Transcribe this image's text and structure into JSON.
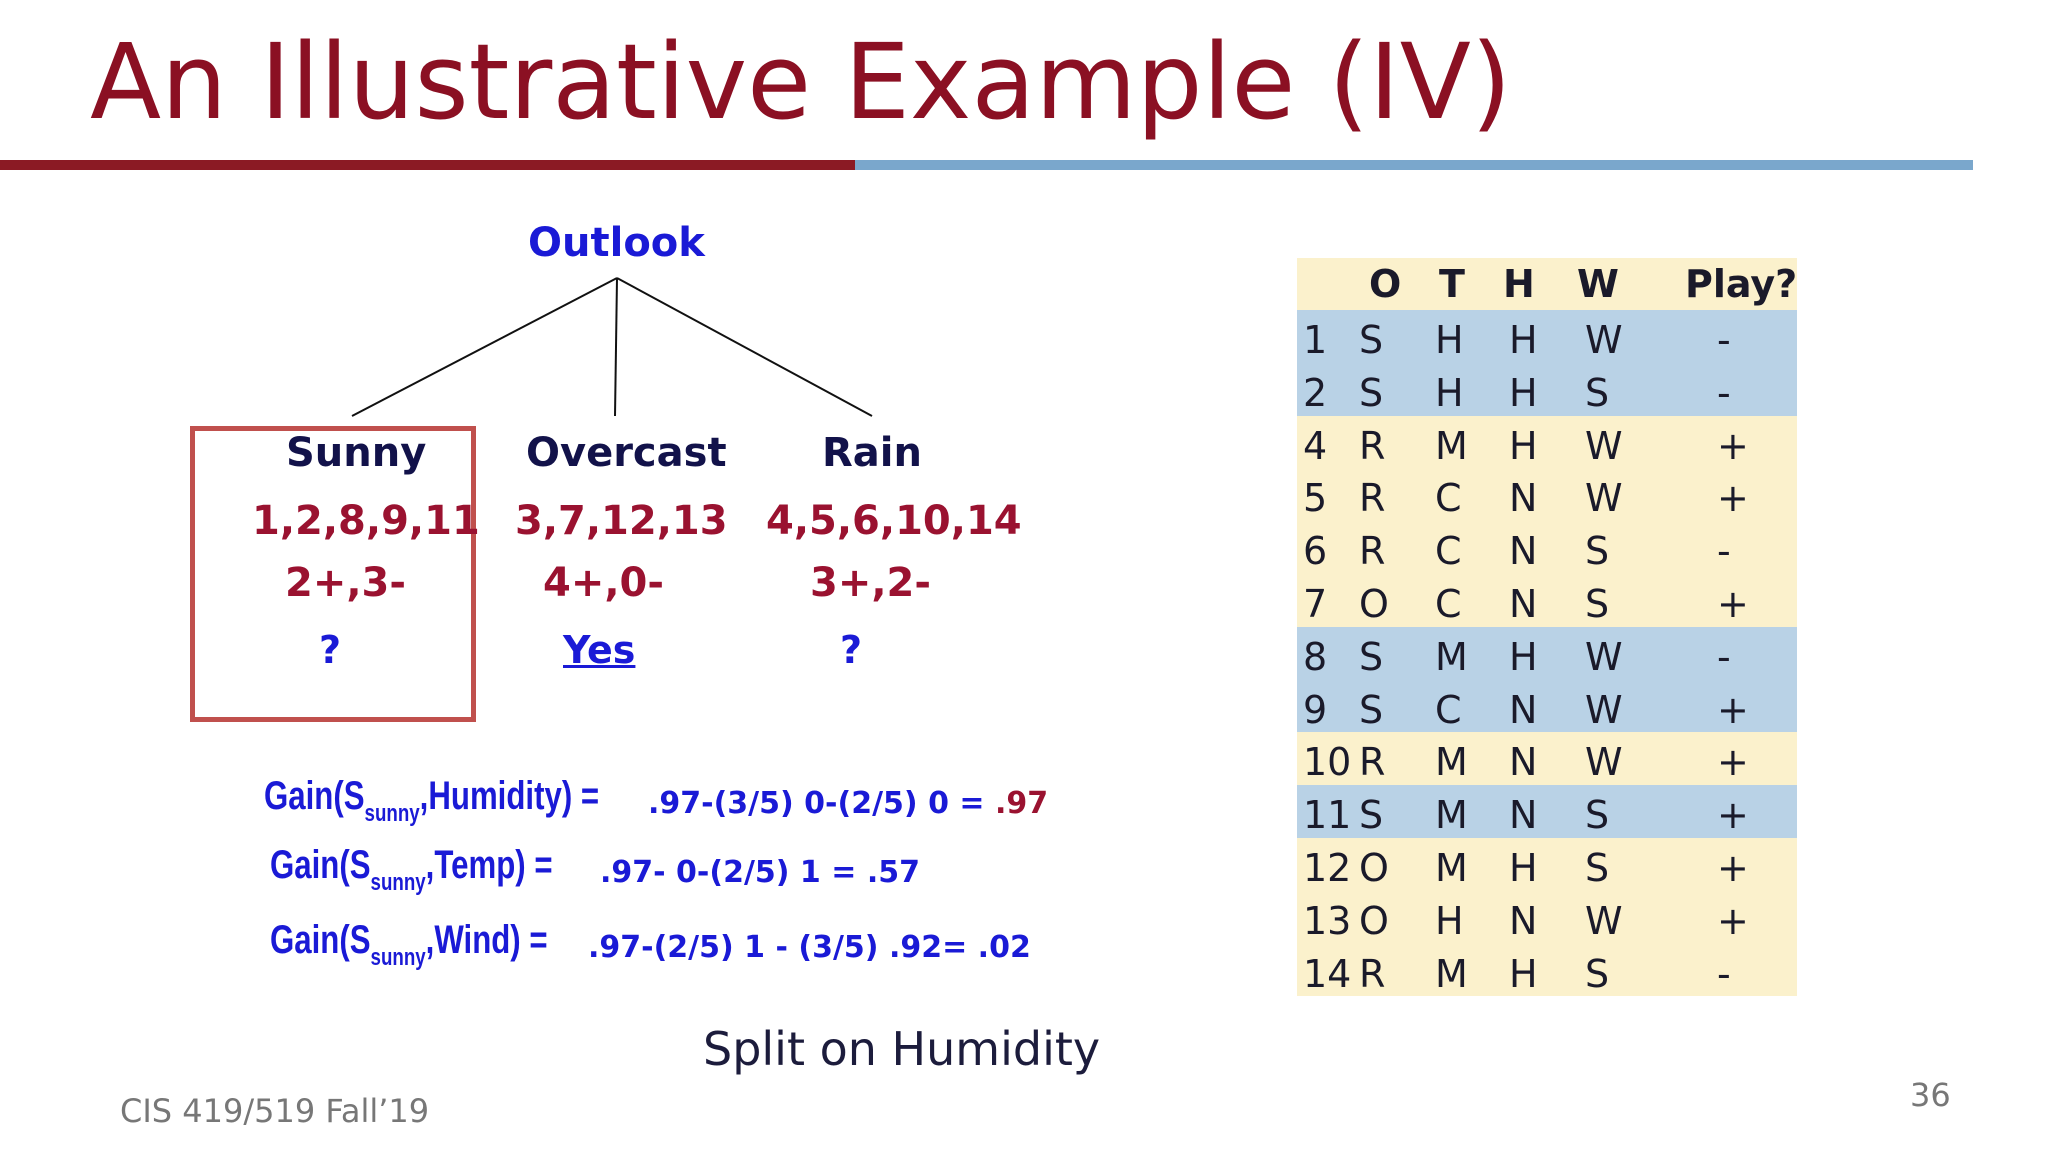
{
  "title": "An Illustrative Example (IV)",
  "tree": {
    "root": "Outlook",
    "branches": [
      {
        "name": "Sunny",
        "ids": "1,2,8,9,11",
        "counts": "2+,3-",
        "label": "?"
      },
      {
        "name": "Overcast",
        "ids": "3,7,12,13",
        "counts": "4+,0-",
        "label": "Yes"
      },
      {
        "name": "Rain",
        "ids": "4,5,6,10,14",
        "counts": "3+,2-",
        "label": "?"
      }
    ]
  },
  "gains": [
    {
      "prefix": "Gain(S",
      "sub": "sunny",
      "attr": ",Humidity)",
      "eq": " =",
      "calc": ".97-(3/5) 0-(2/5) 0 =",
      "result": " .97"
    },
    {
      "prefix": "Gain(S",
      "sub": "sunny",
      "attr": ",Temp)",
      "eq": " =",
      "calc": ".97- 0-(2/5) 1 = .57",
      "result": ""
    },
    {
      "prefix": "Gain(S",
      "sub": "sunny",
      "attr": ",Wind)",
      "eq": " =",
      "calc": ".97-(2/5) 1 - (3/5) .92= .02",
      "result": ""
    }
  ],
  "split_text": "Split on Humidity",
  "footer": "CIS 419/519 Fall’19",
  "page_number": "36",
  "table": {
    "headers": [
      "O",
      "T",
      "H",
      "W",
      "Play?"
    ],
    "rows": [
      {
        "id": "1",
        "o": "S",
        "t": "H",
        "h": "H",
        "w": "W",
        "play": "-"
      },
      {
        "id": "2",
        "o": "S",
        "t": "H",
        "h": "H",
        "w": "S",
        "play": "-"
      },
      {
        "id": "4",
        "o": "R",
        "t": "M",
        "h": "H",
        "w": "W",
        "play": "+"
      },
      {
        "id": "5",
        "o": "R",
        "t": "C",
        "h": "N",
        "w": "W",
        "play": "+"
      },
      {
        "id": "6",
        "o": "R",
        "t": "C",
        "h": "N",
        "w": "S",
        "play": "-"
      },
      {
        "id": "7",
        "o": "O",
        "t": "C",
        "h": "N",
        "w": "S",
        "play": "+"
      },
      {
        "id": "8",
        "o": "S",
        "t": "M",
        "h": "H",
        "w": "W",
        "play": "-"
      },
      {
        "id": "9",
        "o": "S",
        "t": "C",
        "h": "N",
        "w": "W",
        "play": "+"
      },
      {
        "id": "10",
        "o": "R",
        "t": "M",
        "h": "N",
        "w": "W",
        "play": "+"
      },
      {
        "id": "11",
        "o": "S",
        "t": "M",
        "h": "N",
        "w": "S",
        "play": "+"
      },
      {
        "id": "12",
        "o": "O",
        "t": "M",
        "h": "H",
        "w": "S",
        "play": "+"
      },
      {
        "id": "13",
        "o": "O",
        "t": "H",
        "h": "N",
        "w": "W",
        "play": "+"
      },
      {
        "id": "14",
        "o": "R",
        "t": "M",
        "h": "H",
        "w": "S",
        "play": "-"
      }
    ]
  }
}
